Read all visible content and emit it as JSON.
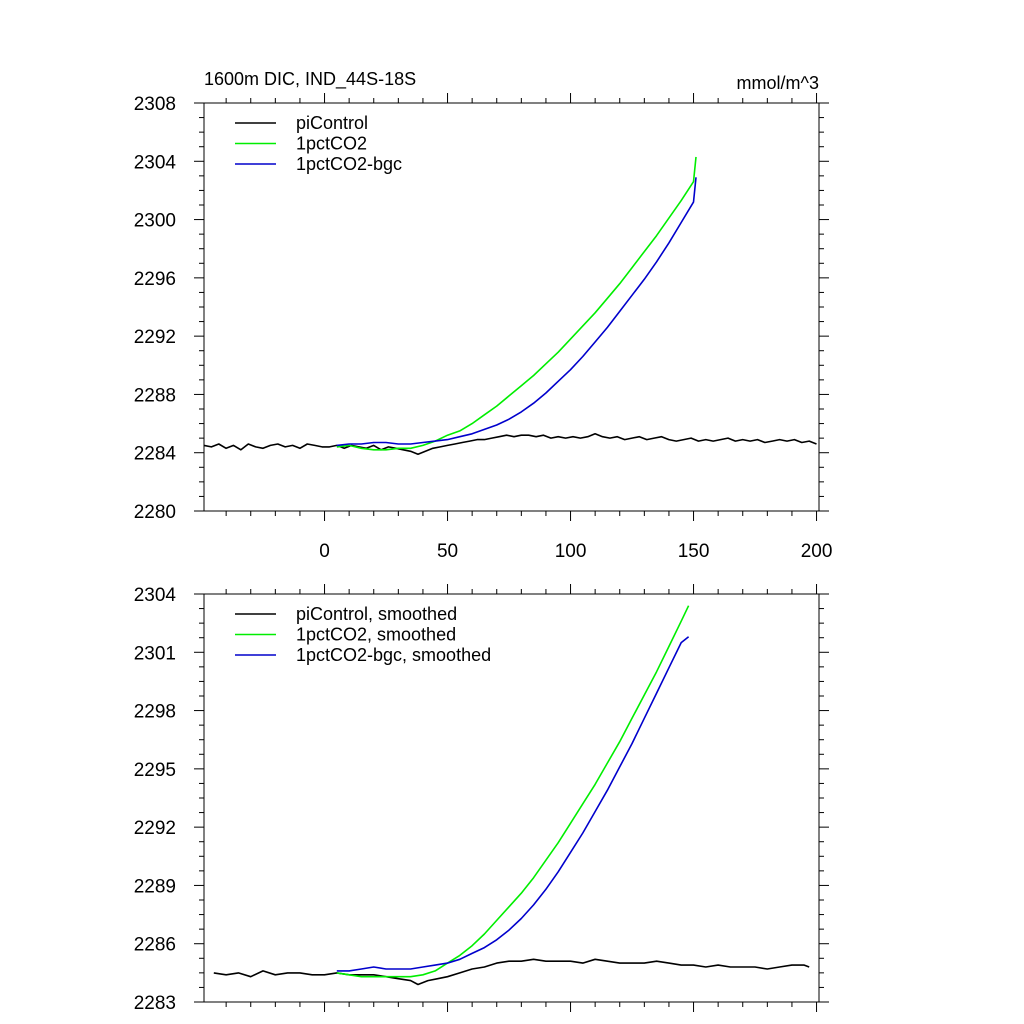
{
  "chart_data": [
    {
      "type": "line",
      "title": "1600m DIC, IND_44S-18S",
      "units": "mmol/m^3",
      "xlim": [
        -49,
        201
      ],
      "ylim": [
        2280,
        2308
      ],
      "x_ticks": [
        "0",
        "50",
        "100",
        "150",
        "200"
      ],
      "y_ticks": [
        "2280",
        "2284",
        "2288",
        "2292",
        "2296",
        "2300",
        "2304",
        "2308"
      ],
      "legend_position": "top-left",
      "series": [
        {
          "name": "piControl",
          "color": "#000000",
          "points": [
            [
              -49,
              2284.5
            ],
            [
              -46,
              2284.4
            ],
            [
              -43,
              2284.6
            ],
            [
              -40,
              2284.3
            ],
            [
              -37,
              2284.5
            ],
            [
              -34,
              2284.2
            ],
            [
              -31,
              2284.6
            ],
            [
              -28,
              2284.4
            ],
            [
              -25,
              2284.3
            ],
            [
              -22,
              2284.5
            ],
            [
              -19,
              2284.6
            ],
            [
              -16,
              2284.4
            ],
            [
              -13,
              2284.5
            ],
            [
              -10,
              2284.3
            ],
            [
              -7,
              2284.6
            ],
            [
              -4,
              2284.5
            ],
            [
              -1,
              2284.4
            ],
            [
              2,
              2284.4
            ],
            [
              5,
              2284.5
            ],
            [
              8,
              2284.3
            ],
            [
              11,
              2284.5
            ],
            [
              14,
              2284.4
            ],
            [
              17,
              2284.3
            ],
            [
              20,
              2284.5
            ],
            [
              23,
              2284.2
            ],
            [
              26,
              2284.4
            ],
            [
              29,
              2284.3
            ],
            [
              32,
              2284.2
            ],
            [
              35,
              2284.1
            ],
            [
              38,
              2283.9
            ],
            [
              41,
              2284.1
            ],
            [
              44,
              2284.3
            ],
            [
              47,
              2284.4
            ],
            [
              50,
              2284.5
            ],
            [
              53,
              2284.6
            ],
            [
              56,
              2284.7
            ],
            [
              59,
              2284.8
            ],
            [
              62,
              2284.9
            ],
            [
              65,
              2284.9
            ],
            [
              68,
              2285.0
            ],
            [
              71,
              2285.1
            ],
            [
              74,
              2285.2
            ],
            [
              77,
              2285.1
            ],
            [
              80,
              2285.2
            ],
            [
              83,
              2285.2
            ],
            [
              86,
              2285.1
            ],
            [
              89,
              2285.2
            ],
            [
              92,
              2285.0
            ],
            [
              95,
              2285.1
            ],
            [
              98,
              2285.0
            ],
            [
              101,
              2285.1
            ],
            [
              104,
              2285.0
            ],
            [
              107,
              2285.1
            ],
            [
              110,
              2285.3
            ],
            [
              113,
              2285.1
            ],
            [
              116,
              2285.0
            ],
            [
              119,
              2285.1
            ],
            [
              122,
              2284.9
            ],
            [
              125,
              2285.0
            ],
            [
              128,
              2285.1
            ],
            [
              131,
              2284.9
            ],
            [
              134,
              2285.0
            ],
            [
              137,
              2285.1
            ],
            [
              140,
              2284.9
            ],
            [
              143,
              2284.8
            ],
            [
              146,
              2284.9
            ],
            [
              149,
              2285.0
            ],
            [
              152,
              2284.8
            ],
            [
              155,
              2284.9
            ],
            [
              158,
              2284.8
            ],
            [
              161,
              2284.9
            ],
            [
              164,
              2285.0
            ],
            [
              167,
              2284.8
            ],
            [
              170,
              2284.9
            ],
            [
              173,
              2284.8
            ],
            [
              176,
              2284.9
            ],
            [
              179,
              2284.7
            ],
            [
              182,
              2284.8
            ],
            [
              185,
              2284.9
            ],
            [
              188,
              2284.8
            ],
            [
              191,
              2284.9
            ],
            [
              194,
              2284.7
            ],
            [
              197,
              2284.8
            ],
            [
              200,
              2284.6
            ]
          ]
        },
        {
          "name": "1pctCO2",
          "color": "#00ee00",
          "points": [
            [
              5,
              2284.4
            ],
            [
              10,
              2284.5
            ],
            [
              15,
              2284.3
            ],
            [
              20,
              2284.2
            ],
            [
              25,
              2284.2
            ],
            [
              30,
              2284.3
            ],
            [
              35,
              2284.3
            ],
            [
              40,
              2284.5
            ],
            [
              45,
              2284.8
            ],
            [
              50,
              2285.2
            ],
            [
              55,
              2285.5
            ],
            [
              60,
              2286.0
            ],
            [
              65,
              2286.6
            ],
            [
              70,
              2287.2
            ],
            [
              75,
              2287.9
            ],
            [
              80,
              2288.6
            ],
            [
              85,
              2289.3
            ],
            [
              90,
              2290.1
            ],
            [
              95,
              2290.9
            ],
            [
              100,
              2291.8
            ],
            [
              105,
              2292.7
            ],
            [
              110,
              2293.6
            ],
            [
              115,
              2294.6
            ],
            [
              120,
              2295.6
            ],
            [
              125,
              2296.7
            ],
            [
              130,
              2297.8
            ],
            [
              135,
              2298.9
            ],
            [
              140,
              2300.1
            ],
            [
              145,
              2301.3
            ],
            [
              150,
              2302.6
            ],
            [
              151,
              2304.3
            ]
          ]
        },
        {
          "name": "1pctCO2-bgc",
          "color": "#0000cc",
          "points": [
            [
              5,
              2284.5
            ],
            [
              10,
              2284.6
            ],
            [
              15,
              2284.6
            ],
            [
              20,
              2284.7
            ],
            [
              25,
              2284.7
            ],
            [
              30,
              2284.6
            ],
            [
              35,
              2284.6
            ],
            [
              40,
              2284.7
            ],
            [
              45,
              2284.8
            ],
            [
              50,
              2284.9
            ],
            [
              55,
              2285.1
            ],
            [
              60,
              2285.3
            ],
            [
              65,
              2285.6
            ],
            [
              70,
              2285.9
            ],
            [
              75,
              2286.3
            ],
            [
              80,
              2286.8
            ],
            [
              85,
              2287.4
            ],
            [
              90,
              2288.1
            ],
            [
              95,
              2288.9
            ],
            [
              100,
              2289.7
            ],
            [
              105,
              2290.6
            ],
            [
              110,
              2291.6
            ],
            [
              115,
              2292.6
            ],
            [
              120,
              2293.7
            ],
            [
              125,
              2294.8
            ],
            [
              130,
              2295.9
            ],
            [
              135,
              2297.1
            ],
            [
              140,
              2298.4
            ],
            [
              145,
              2299.8
            ],
            [
              150,
              2301.2
            ],
            [
              151,
              2302.9
            ]
          ]
        }
      ]
    },
    {
      "type": "line",
      "title": "",
      "units": "",
      "xlim": [
        -49,
        201
      ],
      "ylim": [
        2283,
        2304
      ],
      "x_ticks": [],
      "y_ticks": [
        "2283",
        "2286",
        "2289",
        "2292",
        "2295",
        "2298",
        "2301",
        "2304"
      ],
      "legend_position": "top-left",
      "series": [
        {
          "name": "piControl, smoothed",
          "color": "#000000",
          "points": [
            [
              -45,
              2284.5
            ],
            [
              -40,
              2284.4
            ],
            [
              -35,
              2284.5
            ],
            [
              -30,
              2284.3
            ],
            [
              -25,
              2284.6
            ],
            [
              -20,
              2284.4
            ],
            [
              -15,
              2284.5
            ],
            [
              -10,
              2284.5
            ],
            [
              -5,
              2284.4
            ],
            [
              0,
              2284.4
            ],
            [
              5,
              2284.5
            ],
            [
              10,
              2284.4
            ],
            [
              15,
              2284.4
            ],
            [
              20,
              2284.4
            ],
            [
              25,
              2284.3
            ],
            [
              30,
              2284.2
            ],
            [
              35,
              2284.1
            ],
            [
              38,
              2283.9
            ],
            [
              42,
              2284.1
            ],
            [
              46,
              2284.2
            ],
            [
              50,
              2284.3
            ],
            [
              55,
              2284.5
            ],
            [
              60,
              2284.7
            ],
            [
              65,
              2284.8
            ],
            [
              70,
              2285.0
            ],
            [
              75,
              2285.1
            ],
            [
              80,
              2285.1
            ],
            [
              85,
              2285.2
            ],
            [
              90,
              2285.1
            ],
            [
              95,
              2285.1
            ],
            [
              100,
              2285.1
            ],
            [
              105,
              2285.0
            ],
            [
              110,
              2285.2
            ],
            [
              115,
              2285.1
            ],
            [
              120,
              2285.0
            ],
            [
              125,
              2285.0
            ],
            [
              130,
              2285.0
            ],
            [
              135,
              2285.1
            ],
            [
              140,
              2285.0
            ],
            [
              145,
              2284.9
            ],
            [
              150,
              2284.9
            ],
            [
              155,
              2284.8
            ],
            [
              160,
              2284.9
            ],
            [
              165,
              2284.8
            ],
            [
              170,
              2284.8
            ],
            [
              175,
              2284.8
            ],
            [
              180,
              2284.7
            ],
            [
              185,
              2284.8
            ],
            [
              190,
              2284.9
            ],
            [
              195,
              2284.9
            ],
            [
              197,
              2284.8
            ]
          ]
        },
        {
          "name": "1pctCO2, smoothed",
          "color": "#00ee00",
          "points": [
            [
              5,
              2284.5
            ],
            [
              10,
              2284.4
            ],
            [
              15,
              2284.3
            ],
            [
              20,
              2284.3
            ],
            [
              25,
              2284.3
            ],
            [
              30,
              2284.3
            ],
            [
              35,
              2284.3
            ],
            [
              40,
              2284.4
            ],
            [
              45,
              2284.6
            ],
            [
              50,
              2285.0
            ],
            [
              55,
              2285.4
            ],
            [
              60,
              2285.9
            ],
            [
              65,
              2286.5
            ],
            [
              70,
              2287.2
            ],
            [
              75,
              2287.9
            ],
            [
              80,
              2288.6
            ],
            [
              85,
              2289.4
            ],
            [
              90,
              2290.3
            ],
            [
              95,
              2291.2
            ],
            [
              100,
              2292.2
            ],
            [
              105,
              2293.2
            ],
            [
              110,
              2294.2
            ],
            [
              115,
              2295.3
            ],
            [
              120,
              2296.4
            ],
            [
              125,
              2297.6
            ],
            [
              130,
              2298.8
            ],
            [
              135,
              2300.0
            ],
            [
              140,
              2301.3
            ],
            [
              145,
              2302.6
            ],
            [
              148,
              2303.4
            ]
          ]
        },
        {
          "name": "1pctCO2-bgc, smoothed",
          "color": "#0000cc",
          "points": [
            [
              5,
              2284.6
            ],
            [
              10,
              2284.6
            ],
            [
              15,
              2284.7
            ],
            [
              20,
              2284.8
            ],
            [
              25,
              2284.7
            ],
            [
              30,
              2284.7
            ],
            [
              35,
              2284.7
            ],
            [
              40,
              2284.8
            ],
            [
              45,
              2284.9
            ],
            [
              50,
              2285.0
            ],
            [
              55,
              2285.2
            ],
            [
              60,
              2285.5
            ],
            [
              65,
              2285.8
            ],
            [
              70,
              2286.2
            ],
            [
              75,
              2286.7
            ],
            [
              80,
              2287.3
            ],
            [
              85,
              2288.0
            ],
            [
              90,
              2288.8
            ],
            [
              95,
              2289.7
            ],
            [
              100,
              2290.7
            ],
            [
              105,
              2291.7
            ],
            [
              110,
              2292.8
            ],
            [
              115,
              2293.9
            ],
            [
              120,
              2295.1
            ],
            [
              125,
              2296.3
            ],
            [
              130,
              2297.6
            ],
            [
              135,
              2298.9
            ],
            [
              140,
              2300.2
            ],
            [
              145,
              2301.5
            ],
            [
              148,
              2301.8
            ]
          ]
        }
      ]
    }
  ]
}
